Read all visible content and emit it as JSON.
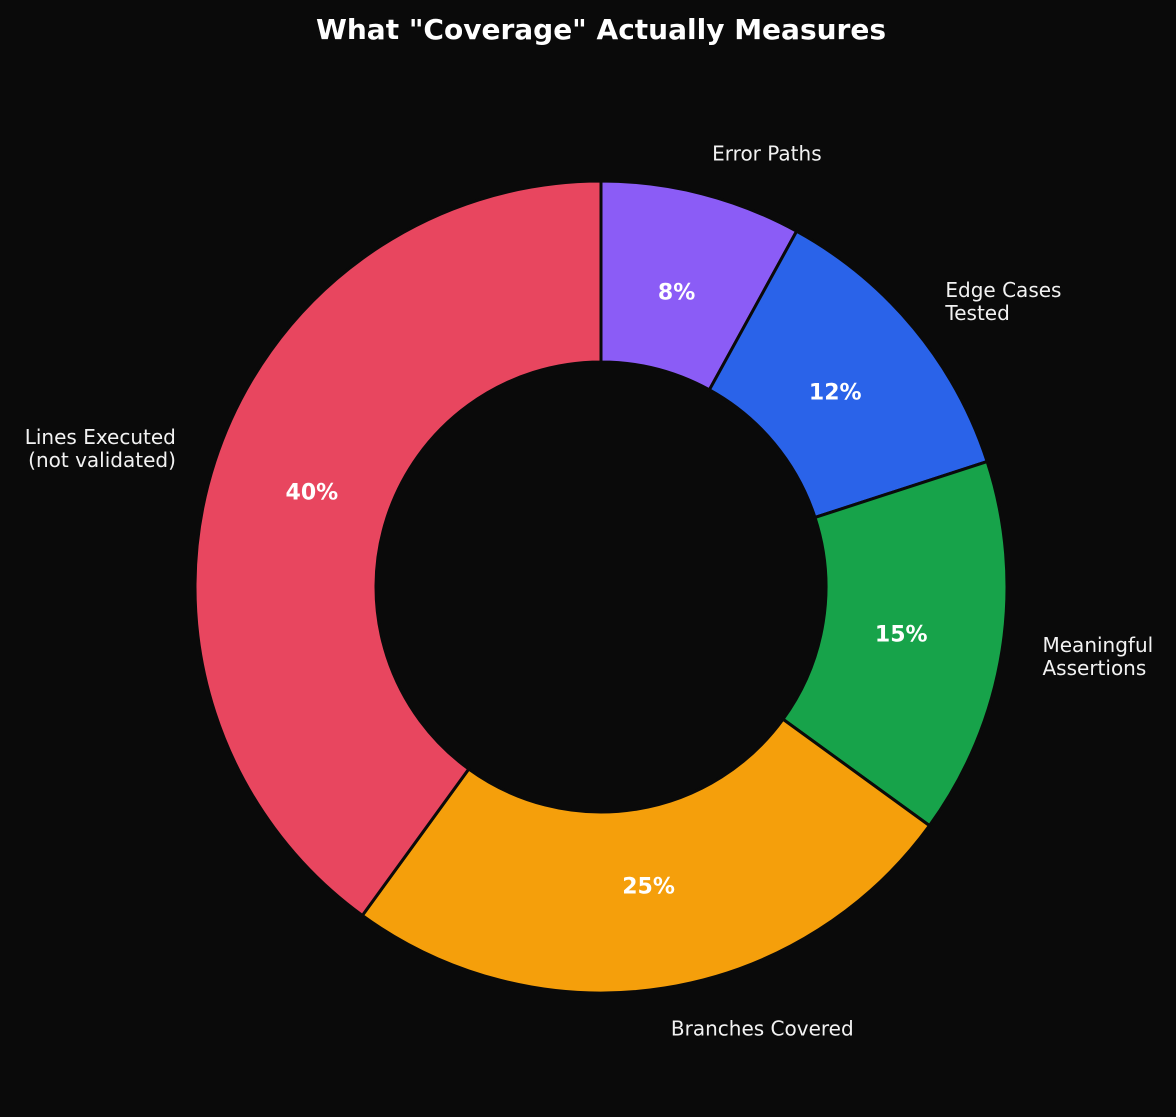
{
  "chart_data": {
    "type": "pie",
    "variant": "donut",
    "title": "What \"Coverage\" Actually Measures",
    "start_angle_deg": 0,
    "direction": "clockwise-from-top",
    "background_color": "#0A0A0A",
    "title_color": "#FFFFFF",
    "label_color": "#F2F2F2",
    "pct_text_color": "#FFFFFF",
    "legend": "none",
    "slices": [
      {
        "label": "Error Paths",
        "value": 8,
        "pct_label": "8%",
        "color": "#8B5CF6"
      },
      {
        "label": "Edge Cases\nTested",
        "value": 12,
        "pct_label": "12%",
        "color": "#2A63E9"
      },
      {
        "label": "Meaningful\nAssertions",
        "value": 15,
        "pct_label": "15%",
        "color": "#17A34A"
      },
      {
        "label": "Branches Covered",
        "value": 25,
        "pct_label": "25%",
        "color": "#F59F0B"
      },
      {
        "label": "Lines Executed\n(not validated)",
        "value": 40,
        "pct_label": "40%",
        "color": "#E8465F"
      }
    ]
  }
}
